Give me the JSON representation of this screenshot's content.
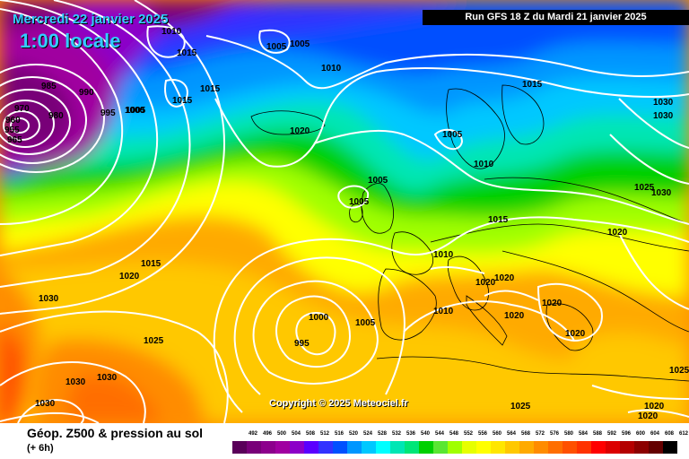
{
  "header": {
    "date_text": "Mercredi 22 janvier 2025",
    "time_text": "1:00 locale",
    "run_text": "Run GFS 18 Z du Mardi 21 janvier 2025"
  },
  "copyright": "Copyright © 2025 Meteociel.fr",
  "footer": {
    "title": "Géop. Z500 & pression au sol",
    "lead": "(+ 6h)"
  },
  "legend": {
    "values": [
      "492",
      "496",
      "500",
      "504",
      "508",
      "512",
      "516",
      "520",
      "524",
      "528",
      "532",
      "536",
      "540",
      "544",
      "548",
      "552",
      "556",
      "560",
      "564",
      "568",
      "572",
      "576",
      "580",
      "584",
      "588",
      "592",
      "596",
      "600",
      "604",
      "608",
      "612"
    ],
    "colors": [
      "#5a005a",
      "#780078",
      "#8c008c",
      "#a000a0",
      "#8c00c8",
      "#5a00ff",
      "#3232ff",
      "#0050ff",
      "#0096ff",
      "#00c8ff",
      "#00ffff",
      "#00e6b4",
      "#00e678",
      "#00d000",
      "#5ae632",
      "#a0ff00",
      "#e6ff00",
      "#ffff00",
      "#ffe600",
      "#ffc800",
      "#ffaa00",
      "#ff8c00",
      "#ff6e00",
      "#ff5000",
      "#ff3200",
      "#ff0000",
      "#dc0000",
      "#b40000",
      "#8c0000",
      "#640000",
      "#000000"
    ]
  },
  "isobar_labels": [
    {
      "text": "985"
    },
    {
      "text": "990"
    },
    {
      "text": "970"
    },
    {
      "text": "980"
    },
    {
      "text": "960"
    },
    {
      "text": "955"
    },
    {
      "text": "965"
    },
    {
      "text": "1010"
    },
    {
      "text": "1015"
    },
    {
      "text": "1015"
    },
    {
      "text": "1015"
    },
    {
      "text": "1005"
    },
    {
      "text": "1005"
    },
    {
      "text": "1010"
    },
    {
      "text": "995"
    },
    {
      "text": "1000"
    },
    {
      "text": "1005"
    },
    {
      "text": "1020"
    },
    {
      "text": "1005"
    },
    {
      "text": "1005"
    },
    {
      "text": "1005"
    },
    {
      "text": "1010"
    },
    {
      "text": "1015"
    },
    {
      "text": "1015"
    },
    {
      "text": "1030"
    },
    {
      "text": "1030"
    },
    {
      "text": "1025"
    },
    {
      "text": "1030"
    },
    {
      "text": "1020"
    },
    {
      "text": "1015"
    },
    {
      "text": "1020"
    },
    {
      "text": "1030"
    },
    {
      "text": "1010"
    },
    {
      "text": "1020"
    },
    {
      "text": "1020"
    },
    {
      "text": "1020"
    },
    {
      "text": "1010"
    },
    {
      "text": "1020"
    },
    {
      "text": "1020"
    },
    {
      "text": "1025"
    },
    {
      "text": "1000"
    },
    {
      "text": "1005"
    },
    {
      "text": "995"
    },
    {
      "text": "1030"
    },
    {
      "text": "1030"
    },
    {
      "text": "1030"
    },
    {
      "text": "1025"
    },
    {
      "text": "1020"
    },
    {
      "text": "1020"
    },
    {
      "text": "1025"
    }
  ]
}
